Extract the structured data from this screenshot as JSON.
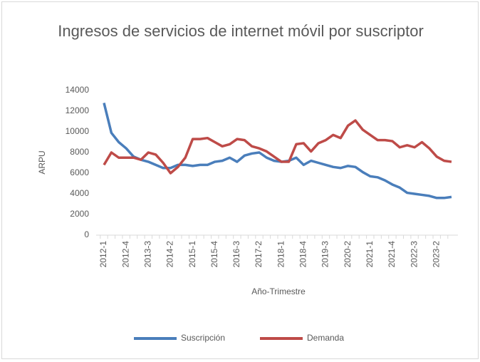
{
  "chart_data": {
    "type": "line",
    "title": "Ingresos de servicios de internet móvil por suscriptor",
    "x_label": "Año-Trimestre",
    "y_label": "ARPU",
    "categories": [
      "2012-1",
      null,
      null,
      "2012-4",
      null,
      null,
      "2013-3",
      null,
      null,
      "2014-2",
      null,
      null,
      "2015-1",
      null,
      null,
      "2015-4",
      null,
      null,
      "2016-3",
      null,
      null,
      "2017-2",
      null,
      null,
      "2018-1",
      null,
      null,
      "2018-4",
      null,
      null,
      "2019-3",
      null,
      null,
      "2020-2",
      null,
      null,
      "2021-1",
      null,
      null,
      "2021-4",
      null,
      null,
      "2022-3",
      null,
      null,
      "2023-2",
      null,
      null
    ],
    "series": [
      {
        "name": "Suscripción",
        "color": "#4a7ebb",
        "values": [
          12800,
          9900,
          9000,
          8400,
          7600,
          7300,
          7100,
          6800,
          6500,
          6500,
          6800,
          6800,
          6700,
          6800,
          6800,
          7100,
          7200,
          7500,
          7100,
          7700,
          7900,
          8000,
          7500,
          7200,
          7100,
          7200,
          7500,
          6800,
          7200,
          7000,
          6800,
          6600,
          6500,
          6700,
          6600,
          6100,
          5700,
          5600,
          5300,
          4900,
          4600,
          4100,
          4000,
          3900,
          3800,
          3600,
          3600,
          3700
        ]
      },
      {
        "name": "Demanda",
        "color": "#be4b48",
        "values": [
          6800,
          8000,
          7500,
          7500,
          7500,
          7300,
          8000,
          7800,
          7000,
          6000,
          6600,
          7500,
          9300,
          9300,
          9400,
          9000,
          8600,
          8800,
          9300,
          9200,
          8600,
          8400,
          8100,
          7600,
          7100,
          7100,
          8800,
          8900,
          8100,
          8900,
          9200,
          9700,
          9400,
          10600,
          11100,
          10200,
          9700,
          9200,
          9200,
          9100,
          8500,
          8700,
          8500,
          9000,
          8400,
          7600,
          7200,
          7100
        ]
      }
    ],
    "ylim": [
      0,
      14000
    ],
    "yticks": [
      0,
      2000,
      4000,
      6000,
      8000,
      10000,
      12000,
      14000
    ],
    "legend": "bottom"
  }
}
